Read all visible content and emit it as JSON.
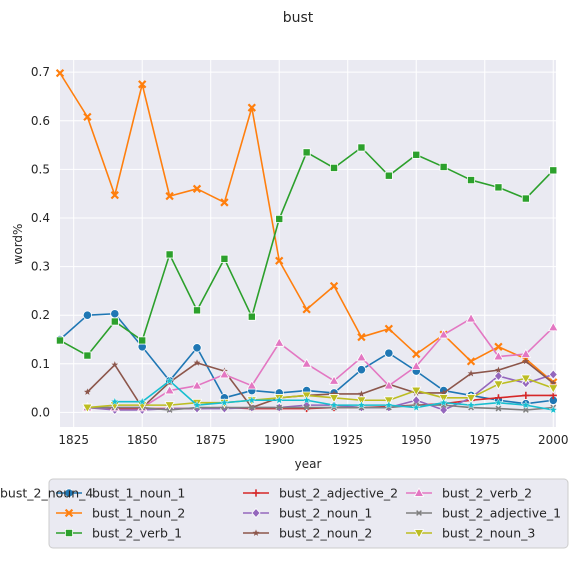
{
  "chart_data": {
    "type": "line",
    "title": "bust",
    "xlabel": "year",
    "ylabel": "word%",
    "xlim": [
      1820,
      2001
    ],
    "ylim": [
      -0.03,
      0.725
    ],
    "xticks": [
      1825,
      1850,
      1875,
      1900,
      1925,
      1950,
      1975,
      2000
    ],
    "yticks": [
      0.0,
      0.1,
      0.2,
      0.3,
      0.4,
      0.5,
      0.6,
      0.7
    ],
    "grid": true,
    "legend_position": "bottom",
    "x": [
      1820,
      1830,
      1840,
      1850,
      1860,
      1870,
      1880,
      1890,
      1900,
      1910,
      1920,
      1930,
      1940,
      1950,
      1960,
      1970,
      1980,
      1990,
      2000
    ],
    "series": [
      {
        "name": "bust_1_noun_1",
        "color": "#1f77b4",
        "marker": "circle",
        "values": [
          0.15,
          0.2,
          0.203,
          0.135,
          0.065,
          0.133,
          0.03,
          0.045,
          0.04,
          0.045,
          0.04,
          0.088,
          0.122,
          0.085,
          0.045,
          0.035,
          0.025,
          0.018,
          0.025
        ]
      },
      {
        "name": "bust_1_noun_2",
        "color": "#ff7f0e",
        "marker": "x",
        "values": [
          0.698,
          0.608,
          0.447,
          0.675,
          0.445,
          0.46,
          0.432,
          0.627,
          0.312,
          0.212,
          0.26,
          0.155,
          0.172,
          0.12,
          0.16,
          0.105,
          0.135,
          0.11,
          0.062
        ]
      },
      {
        "name": "bust_2_verb_1",
        "color": "#2ca02c",
        "marker": "square",
        "values": [
          0.148,
          0.117,
          0.187,
          0.148,
          0.325,
          0.21,
          0.316,
          0.197,
          0.398,
          0.535,
          0.503,
          0.545,
          0.487,
          0.53,
          0.505,
          0.478,
          0.463,
          0.44,
          0.498
        ]
      },
      {
        "name": "bust_2_adjective_2",
        "color": "#d62728",
        "marker": "plus",
        "values": [
          null,
          0.01,
          0.008,
          0.008,
          0.008,
          0.008,
          0.01,
          0.008,
          0.008,
          0.008,
          0.01,
          0.01,
          0.012,
          0.015,
          0.018,
          0.025,
          0.03,
          0.035,
          0.035
        ]
      },
      {
        "name": "bust_2_noun_1",
        "color": "#9467bd",
        "marker": "diamond",
        "values": [
          null,
          0.01,
          0.005,
          0.005,
          0.008,
          0.008,
          0.008,
          0.01,
          0.01,
          0.015,
          0.015,
          0.01,
          0.01,
          0.025,
          0.005,
          0.03,
          0.075,
          0.06,
          0.078
        ]
      },
      {
        "name": "bust_2_noun_2",
        "color": "#8c564b",
        "marker": "star",
        "values": [
          null,
          0.042,
          0.098,
          0.01,
          0.062,
          0.102,
          0.085,
          0.01,
          0.03,
          0.035,
          0.038,
          0.038,
          0.058,
          0.04,
          0.04,
          0.08,
          0.087,
          0.105,
          0.06
        ]
      },
      {
        "name": "bust_2_verb_2",
        "color": "#e377c2",
        "marker": "triangle-up",
        "values": [
          null,
          0.01,
          0.01,
          0.01,
          0.045,
          0.055,
          0.078,
          0.055,
          0.143,
          0.1,
          0.065,
          0.113,
          0.055,
          0.095,
          0.16,
          0.193,
          0.115,
          0.12,
          0.175
        ]
      },
      {
        "name": "bust_2_adjective_1",
        "color": "#7f7f7f",
        "marker": "x-small",
        "values": [
          null,
          0.01,
          0.01,
          0.01,
          0.005,
          0.01,
          0.01,
          0.01,
          0.01,
          0.01,
          0.01,
          0.01,
          0.01,
          0.015,
          0.015,
          0.01,
          0.008,
          0.005,
          0.01
        ]
      },
      {
        "name": "bust_2_noun_3",
        "color": "#bcbd22",
        "marker": "triangle-down",
        "values": [
          null,
          0.01,
          0.015,
          0.015,
          0.015,
          0.02,
          0.02,
          0.025,
          0.03,
          0.035,
          0.03,
          0.025,
          0.025,
          0.045,
          0.03,
          0.03,
          0.058,
          0.07,
          0.05
        ]
      },
      {
        "name": "bust_2_noun_4",
        "color": "#17becf",
        "marker": "star-small",
        "values": [
          null,
          null,
          0.022,
          0.022,
          0.065,
          0.015,
          0.02,
          0.025,
          0.025,
          0.025,
          0.015,
          0.015,
          0.015,
          0.01,
          0.02,
          0.015,
          0.02,
          0.015,
          0.005
        ]
      }
    ]
  }
}
